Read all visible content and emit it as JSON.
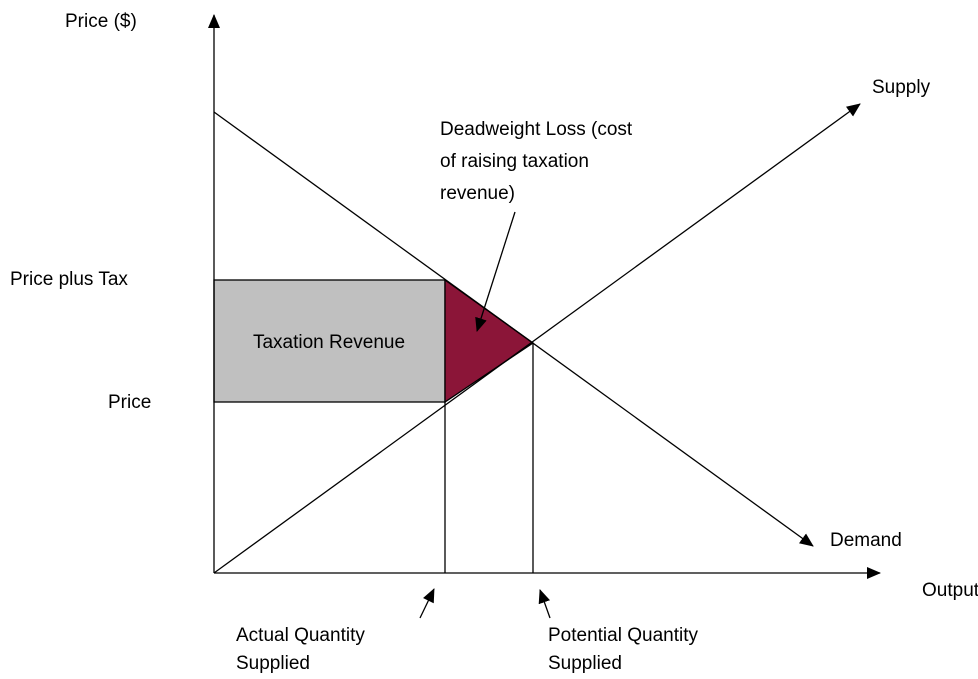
{
  "axes": {
    "y_label": "Price ($)",
    "x_label": "Output"
  },
  "curves": {
    "supply": "Supply",
    "demand": "Demand"
  },
  "price_levels": {
    "upper": "Price plus Tax",
    "lower": "Price"
  },
  "areas": {
    "revenue": "Taxation Revenue",
    "deadweight_loss": [
      "Deadweight Loss (cost",
      "of raising taxation",
      "revenue)"
    ]
  },
  "quantities": {
    "actual": [
      "Actual Quantity",
      "Supplied"
    ],
    "potential": [
      "Potential Quantity",
      "Supplied"
    ]
  }
}
